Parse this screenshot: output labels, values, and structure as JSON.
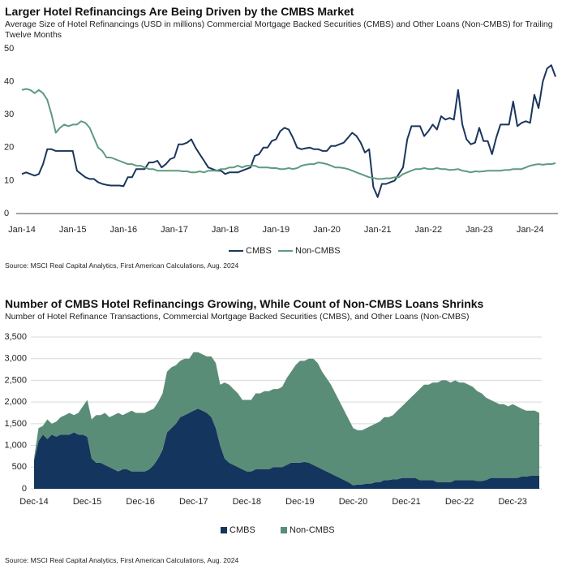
{
  "chart_data": [
    {
      "type": "line",
      "title": "Larger Hotel Refinancings Are Being Driven by the CMBS Market",
      "subtitle": "Average Size of Hotel Refinancings (USD in millions) Commercial Mortgage Backed Securities (CMBS) and Other Loans (Non-CMBS) for Trailing Twelve Months",
      "source": "Source: MSCI Real Capital Analytics, First American Calculations, Aug. 2024",
      "categories": [
        "Jan-14",
        null,
        null,
        null,
        null,
        null,
        null,
        null,
        null,
        null,
        null,
        null,
        "Jan-15",
        null,
        null,
        null,
        null,
        null,
        null,
        null,
        null,
        null,
        null,
        null,
        "Jan-16",
        null,
        null,
        null,
        null,
        null,
        null,
        null,
        null,
        null,
        null,
        null,
        "Jan-17",
        null,
        null,
        null,
        null,
        null,
        null,
        null,
        null,
        null,
        null,
        null,
        "Jan-18",
        null,
        null,
        null,
        null,
        null,
        null,
        null,
        null,
        null,
        null,
        null,
        "Jan-19",
        null,
        null,
        null,
        null,
        null,
        null,
        null,
        null,
        null,
        null,
        null,
        "Jan-20",
        null,
        null,
        null,
        null,
        null,
        null,
        null,
        null,
        null,
        null,
        null,
        "Jan-21",
        null,
        null,
        null,
        null,
        null,
        null,
        null,
        null,
        null,
        null,
        null,
        "Jan-22",
        null,
        null,
        null,
        null,
        null,
        null,
        null,
        null,
        null,
        null,
        null,
        "Jan-23",
        null,
        null,
        null,
        null,
        null,
        null,
        null,
        null,
        null,
        null,
        null,
        "Jan-24",
        null,
        null,
        null,
        null,
        null,
        null
      ],
      "series": [
        {
          "name": "CMBS",
          "color": "#1b365d",
          "values": [
            12,
            12.5,
            12,
            11.5,
            12,
            15,
            19.5,
            19.5,
            19,
            19,
            19,
            19,
            19,
            13,
            12,
            11,
            10.5,
            10.5,
            9.5,
            9,
            8.7,
            8.5,
            8.5,
            8.5,
            8.3,
            11,
            11,
            13.5,
            13.5,
            13.5,
            15.5,
            15.5,
            16,
            14,
            15,
            16.5,
            17,
            21,
            21,
            21.5,
            22.5,
            20,
            18,
            16,
            14,
            13.5,
            13,
            13,
            12,
            12.5,
            12.5,
            12.5,
            13,
            13.5,
            14,
            17.5,
            18,
            20,
            20,
            22,
            22.5,
            25,
            26,
            25.5,
            23,
            20,
            19.5,
            19.8,
            20,
            19.5,
            19.5,
            19,
            19,
            20.5,
            20.5,
            21,
            21.5,
            23,
            24.5,
            23.5,
            21.5,
            18.5,
            19.5,
            8,
            5,
            9,
            9,
            9.5,
            10,
            12,
            14,
            22.5,
            26.5,
            26.5,
            26.5,
            23.5,
            25,
            27,
            25.5,
            29.5,
            28.5,
            29,
            28.5,
            37.5,
            27,
            22.5,
            21,
            21.5,
            26,
            22,
            22,
            18,
            23,
            27,
            27,
            27,
            34,
            26.5,
            27.5,
            28,
            27.5,
            36,
            32,
            40,
            44,
            45,
            41.5
          ]
        },
        {
          "name": "Non-CMBS",
          "color": "#5e9a80",
          "values": [
            37.5,
            37.8,
            37.5,
            36.5,
            37.5,
            36.5,
            34.5,
            30,
            24.5,
            26,
            27,
            26.5,
            27,
            27,
            28,
            27.5,
            26,
            23,
            20,
            19,
            17,
            17,
            16.5,
            16,
            15.5,
            15,
            15,
            14.5,
            14.5,
            14,
            13.5,
            13.5,
            13,
            13,
            13,
            13,
            13,
            13,
            12.8,
            12.8,
            12.5,
            12.5,
            12.8,
            12.5,
            13,
            13,
            13,
            13.5,
            13.5,
            14,
            14,
            14.5,
            14,
            14.5,
            14.5,
            14.5,
            14,
            14,
            14,
            13.8,
            13.8,
            13.5,
            13.5,
            13.8,
            13.5,
            13.8,
            14.5,
            14.8,
            15,
            15,
            15.5,
            15.3,
            15,
            14.5,
            14,
            14,
            13.8,
            13.5,
            13,
            12.5,
            12,
            11.5,
            11,
            10.8,
            10.5,
            10.5,
            10.7,
            10.7,
            11,
            11,
            12,
            12.5,
            13,
            13.5,
            13.5,
            13.8,
            13.5,
            13.5,
            13.8,
            13.5,
            13.5,
            13.2,
            13.3,
            13.5,
            13,
            12.8,
            12.5,
            12.8,
            12.7,
            12.8,
            13,
            13,
            13,
            13,
            13.2,
            13.2,
            13.5,
            13.5,
            13.5,
            14,
            14.5,
            14.8,
            15,
            14.8,
            15,
            15,
            15.3
          ]
        }
      ],
      "ylim": [
        0,
        50
      ],
      "yticks": [
        0,
        10,
        20,
        30,
        40,
        50
      ],
      "grid": false,
      "legend": "bottom"
    },
    {
      "type": "area",
      "title": "Number of CMBS Hotel Refinancings Growing, While Count of Non-CMBS Loans Shrinks",
      "subtitle": "Number of Hotel Refinance Transactions, Commercial Mortgage Backed Securities (CMBS), and Other Loans (Non-CMBS)",
      "source": "Source: MSCI Real Capital Analytics, First American Calculations, Aug. 2024",
      "categories": [
        "Dec-14",
        null,
        null,
        null,
        null,
        null,
        null,
        null,
        null,
        null,
        null,
        null,
        "Dec-15",
        null,
        null,
        null,
        null,
        null,
        null,
        null,
        null,
        null,
        null,
        null,
        "Dec-16",
        null,
        null,
        null,
        null,
        null,
        null,
        null,
        null,
        null,
        null,
        null,
        "Dec-17",
        null,
        null,
        null,
        null,
        null,
        null,
        null,
        null,
        null,
        null,
        null,
        "Dec-18",
        null,
        null,
        null,
        null,
        null,
        null,
        null,
        null,
        null,
        null,
        null,
        "Dec-19",
        null,
        null,
        null,
        null,
        null,
        null,
        null,
        null,
        null,
        null,
        null,
        "Dec-20",
        null,
        null,
        null,
        null,
        null,
        null,
        null,
        null,
        null,
        null,
        null,
        "Dec-21",
        null,
        null,
        null,
        null,
        null,
        null,
        null,
        null,
        null,
        null,
        null,
        "Dec-22",
        null,
        null,
        null,
        null,
        null,
        null,
        null,
        null,
        null,
        null,
        null,
        "Dec-23",
        null,
        null,
        null,
        null,
        null,
        null
      ],
      "series": [
        {
          "name": "CMBS",
          "color": "#14365e",
          "values": [
            650,
            1100,
            1250,
            1150,
            1250,
            1200,
            1250,
            1250,
            1250,
            1300,
            1250,
            1250,
            1200,
            700,
            600,
            600,
            550,
            500,
            450,
            400,
            450,
            450,
            400,
            400,
            400,
            400,
            450,
            550,
            700,
            900,
            1300,
            1400,
            1500,
            1650,
            1700,
            1750,
            1800,
            1850,
            1800,
            1750,
            1650,
            1400,
            1000,
            700,
            600,
            550,
            500,
            450,
            400,
            400,
            450,
            450,
            450,
            450,
            500,
            500,
            500,
            550,
            600,
            600,
            600,
            620,
            600,
            550,
            500,
            450,
            400,
            350,
            300,
            250,
            200,
            150,
            80,
            100,
            100,
            120,
            120,
            150,
            150,
            200,
            200,
            220,
            220,
            250,
            250,
            250,
            250,
            200,
            200,
            200,
            200,
            150,
            150,
            150,
            150,
            200,
            200,
            200,
            200,
            200,
            180,
            180,
            200,
            250,
            250,
            250,
            250,
            250,
            250,
            250,
            280,
            280,
            300,
            300,
            300
          ]
        },
        {
          "name": "Non-CMBS",
          "color": "#5a8d77",
          "values": [
            50,
            300,
            200,
            450,
            250,
            350,
            400,
            450,
            500,
            400,
            500,
            650,
            850,
            900,
            1100,
            1100,
            1200,
            1150,
            1250,
            1350,
            1250,
            1300,
            1400,
            1350,
            1350,
            1350,
            1350,
            1300,
            1300,
            1300,
            1400,
            1400,
            1350,
            1300,
            1300,
            1250,
            1350,
            1300,
            1300,
            1300,
            1400,
            1500,
            1400,
            1750,
            1800,
            1750,
            1700,
            1600,
            1650,
            1650,
            1750,
            1750,
            1800,
            1800,
            1800,
            1800,
            1850,
            2000,
            2100,
            2250,
            2350,
            2330,
            2400,
            2450,
            2400,
            2250,
            2150,
            2050,
            1900,
            1750,
            1600,
            1450,
            1320,
            1250,
            1250,
            1280,
            1330,
            1350,
            1400,
            1450,
            1450,
            1480,
            1580,
            1650,
            1750,
            1850,
            1950,
            2100,
            2200,
            2200,
            2250,
            2300,
            2350,
            2350,
            2300,
            2300,
            2250,
            2250,
            2200,
            2150,
            2070,
            2020,
            1900,
            1800,
            1750,
            1700,
            1700,
            1650,
            1700,
            1650,
            1570,
            1520,
            1500,
            1500,
            1450
          ]
        }
      ],
      "ylim": [
        0,
        3500
      ],
      "yticks": [
        0,
        500,
        {
          "value": 1000,
          "label": "1,000"
        },
        {
          "value": 1500,
          "label": "1,500"
        },
        {
          "value": 2000,
          "label": "2,000"
        },
        {
          "value": 2500,
          "label": "2,500"
        },
        {
          "value": 3000,
          "label": "3,000"
        },
        {
          "value": 3500,
          "label": "3,500"
        }
      ],
      "grid": true,
      "legend": "bottom"
    }
  ]
}
